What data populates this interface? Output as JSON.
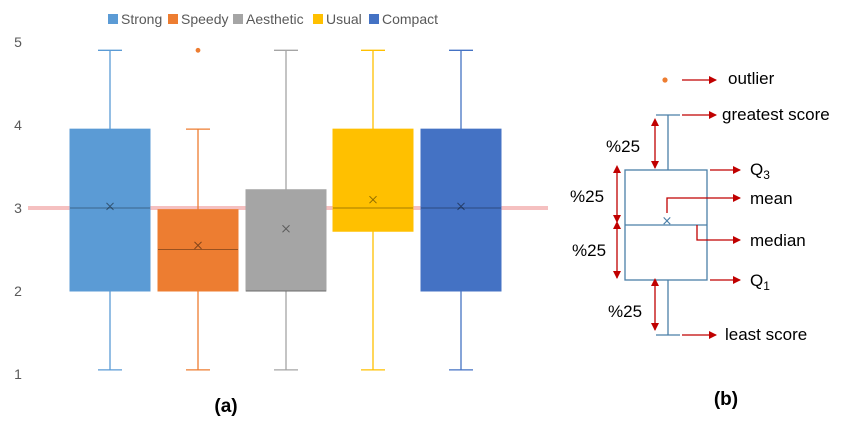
{
  "chart_data": [
    {
      "type": "box",
      "ylim": [
        1,
        5
      ],
      "yticks": [
        1,
        2,
        3,
        4,
        5
      ],
      "reference_line": 3,
      "series": [
        {
          "name": "Strong",
          "color": "#5B9BD5",
          "min": 1.05,
          "q1": 2.0,
          "median": 3.0,
          "q3": 3.95,
          "max": 4.9,
          "mean": 3.02,
          "outliers": []
        },
        {
          "name": "Speedy",
          "color": "#ED7D31",
          "min": 1.05,
          "q1": 2.0,
          "median": 2.5,
          "q3": 2.98,
          "max": 3.95,
          "mean": 2.55,
          "outliers": [
            4.9
          ]
        },
        {
          "name": "Aesthetic",
          "color": "#A5A5A5",
          "min": 1.05,
          "q1": 2.0,
          "median": 2.0,
          "q3": 3.22,
          "max": 4.9,
          "mean": 2.75,
          "outliers": []
        },
        {
          "name": "Usual",
          "color": "#FFC000",
          "min": 1.05,
          "q1": 2.72,
          "median": 3.0,
          "q3": 3.95,
          "max": 4.9,
          "mean": 3.1,
          "outliers": []
        },
        {
          "name": "Compact",
          "color": "#4472C4",
          "min": 1.05,
          "q1": 2.0,
          "median": 3.0,
          "q3": 3.95,
          "max": 4.9,
          "mean": 3.02,
          "outliers": []
        }
      ],
      "panel_label": "(a)"
    }
  ],
  "diagram": {
    "panel_label": "(b)",
    "labels": {
      "outlier": "outlier",
      "greatest": "greatest score",
      "q3_letter": "Q",
      "q3_sub": "3",
      "mean": "mean",
      "median": "median",
      "q1_letter": "Q",
      "q1_sub": "1",
      "least": "least score"
    },
    "quartile_pct": [
      "%25",
      "%25",
      "%25",
      "%25"
    ]
  },
  "colors": {
    "arrow": "#C00000",
    "box_outline": "#4A7FA8",
    "outlier_dot": "#ED7D31",
    "reference_line": "#F4B6B6"
  }
}
